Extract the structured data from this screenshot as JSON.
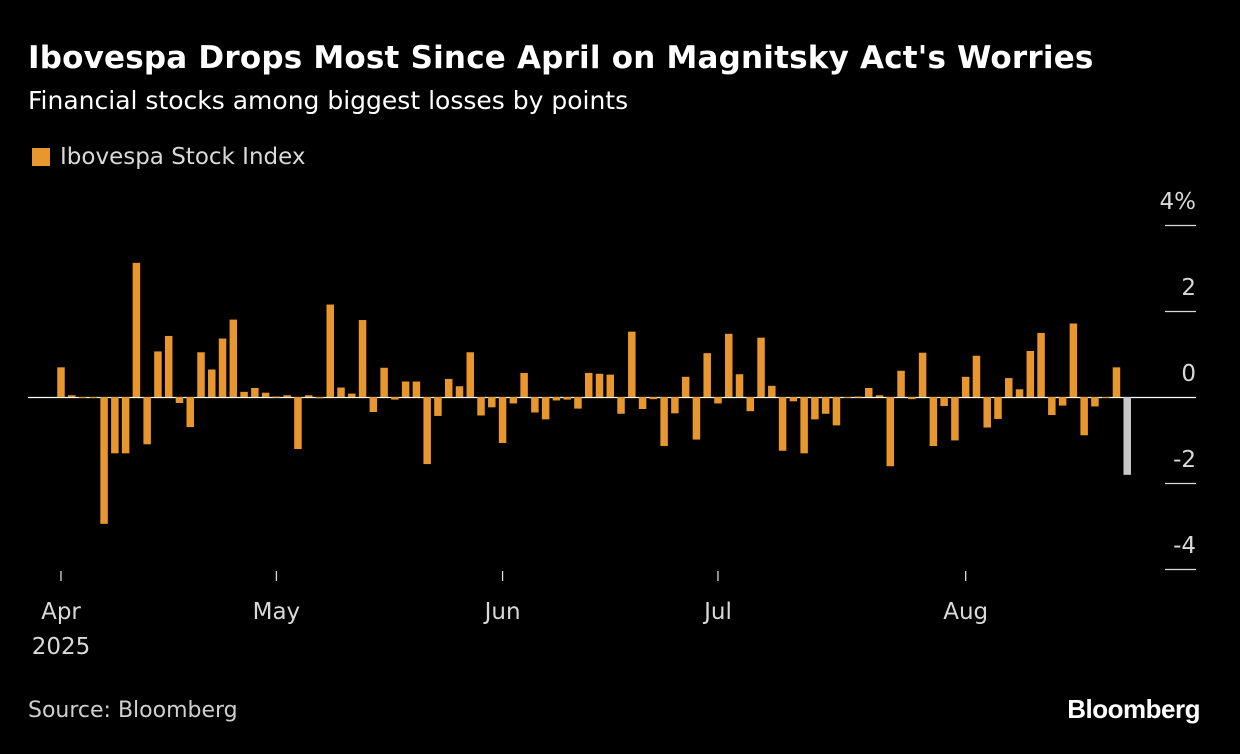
{
  "header": {
    "title": "Ibovespa Drops Most Since April on Magnitsky Act's Worries",
    "subtitle": "Financial stocks among biggest losses by points"
  },
  "footer": {
    "source": "Source: Bloomberg",
    "logo": "Bloomberg"
  },
  "colors": {
    "background": "#000000",
    "bar": "#E8962E",
    "highlight_bar": "#C8C8C8",
    "zero_line": "#FFFFFF",
    "text": "#FFFFFF",
    "muted_text": "#D9D9D9"
  },
  "chart_data": {
    "type": "bar",
    "title": "Ibovespa Drops Most Since April on Magnitsky Act's Worries",
    "subtitle": "Financial stocks among biggest losses by points",
    "xlabel": "",
    "ylabel": "",
    "legend": [
      "Ibovespa Stock Index"
    ],
    "legend_position": "top-left",
    "ylim": [
      -4,
      4
    ],
    "y_ticks": [
      {
        "value": 4,
        "label": "4%"
      },
      {
        "value": 2,
        "label": "2"
      },
      {
        "value": 0,
        "label": "0"
      },
      {
        "value": -2,
        "label": "-2"
      },
      {
        "value": -4,
        "label": "-4"
      }
    ],
    "x_ticks": [
      {
        "index": 0,
        "label": "Apr",
        "sublabel": "2025"
      },
      {
        "index": 20,
        "label": "May",
        "sublabel": ""
      },
      {
        "index": 41,
        "label": "Jun",
        "sublabel": ""
      },
      {
        "index": 61,
        "label": "Jul",
        "sublabel": ""
      },
      {
        "index": 84,
        "label": "Aug",
        "sublabel": ""
      }
    ],
    "series": [
      {
        "name": "Ibovespa Stock Index",
        "values": [
          0.69,
          0.04,
          -0.01,
          -0.01,
          -2.95,
          -1.31,
          -1.31,
          3.12,
          -1.1,
          1.06,
          1.42,
          -0.14,
          -0.7,
          1.04,
          0.64,
          1.36,
          1.8,
          0.12,
          0.21,
          0.1,
          0.01,
          0.04,
          -1.21,
          0.04,
          -0.03,
          2.15,
          0.22,
          0.08,
          1.79,
          -0.35,
          0.68,
          -0.06,
          0.36,
          0.36,
          -1.56,
          -0.44,
          0.42,
          0.25,
          1.04,
          -0.43,
          -0.24,
          -1.07,
          -0.15,
          0.56,
          -0.36,
          -0.52,
          -0.08,
          -0.06,
          -0.27,
          0.56,
          0.54,
          0.52,
          -0.39,
          1.52,
          -0.28,
          -0.05,
          -1.14,
          -0.38,
          0.47,
          -0.99,
          1.02,
          -0.15,
          1.47,
          0.53,
          -0.33,
          1.38,
          0.26,
          -1.25,
          -0.1,
          -1.31,
          -0.52,
          -0.39,
          -0.66,
          0.0,
          0.01,
          0.21,
          0.04,
          -1.61,
          0.61,
          -0.05,
          1.03,
          -1.14,
          -0.21,
          -1.01,
          0.47,
          0.96,
          -0.71,
          -0.51,
          0.44,
          0.18,
          1.07,
          1.49,
          -0.42,
          -0.2,
          1.71,
          -0.89,
          -0.22,
          0.0,
          0.69,
          -1.81
        ],
        "highlight_last": true
      }
    ]
  }
}
